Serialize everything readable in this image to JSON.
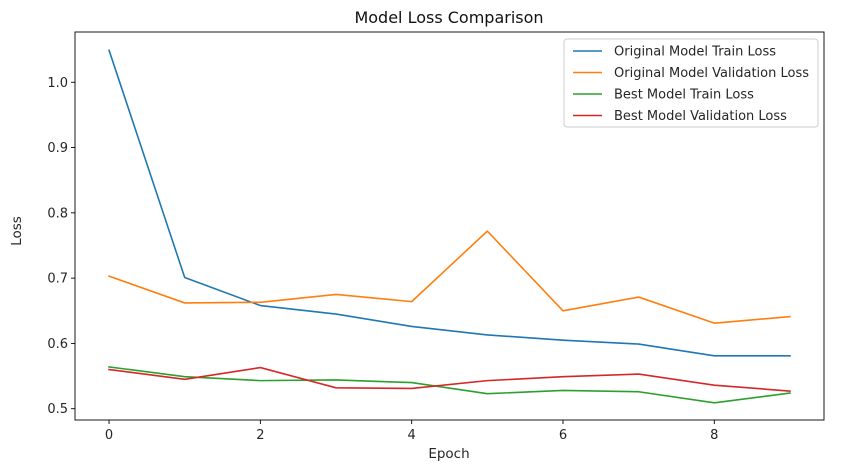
{
  "chart_data": {
    "type": "line",
    "title": "Model Loss Comparison",
    "xlabel": "Epoch",
    "ylabel": "Loss",
    "xlim": [
      -0.45,
      9.45
    ],
    "ylim": [
      0.4827,
      1.077
    ],
    "x": [
      0,
      1,
      2,
      3,
      4,
      5,
      6,
      7,
      8,
      9
    ],
    "xticks": [
      0,
      2,
      4,
      6,
      8
    ],
    "xtick_labels": [
      "0",
      "2",
      "4",
      "6",
      "8"
    ],
    "yticks": [
      0.5,
      0.6,
      0.7,
      0.8,
      0.9,
      1.0
    ],
    "ytick_labels": [
      "0.5",
      "0.6",
      "0.7",
      "0.8",
      "0.9",
      "1.0"
    ],
    "grid": false,
    "legend_position": "top-right",
    "series": [
      {
        "name": "Original Model Train Loss",
        "color": "#1f77b4",
        "values": [
          1.049,
          0.701,
          0.658,
          0.645,
          0.626,
          0.613,
          0.605,
          0.599,
          0.581,
          0.581
        ]
      },
      {
        "name": "Original Model Validation Loss",
        "color": "#ff7f0e",
        "values": [
          0.703,
          0.662,
          0.663,
          0.675,
          0.664,
          0.772,
          0.65,
          0.671,
          0.631,
          0.641
        ]
      },
      {
        "name": "Best Model Train Loss",
        "color": "#2ca02c",
        "values": [
          0.564,
          0.549,
          0.543,
          0.544,
          0.54,
          0.523,
          0.528,
          0.526,
          0.509,
          0.524
        ]
      },
      {
        "name": "Best Model Validation Loss",
        "color": "#d62728",
        "values": [
          0.56,
          0.545,
          0.563,
          0.532,
          0.531,
          0.543,
          0.549,
          0.553,
          0.536,
          0.527
        ]
      }
    ]
  }
}
